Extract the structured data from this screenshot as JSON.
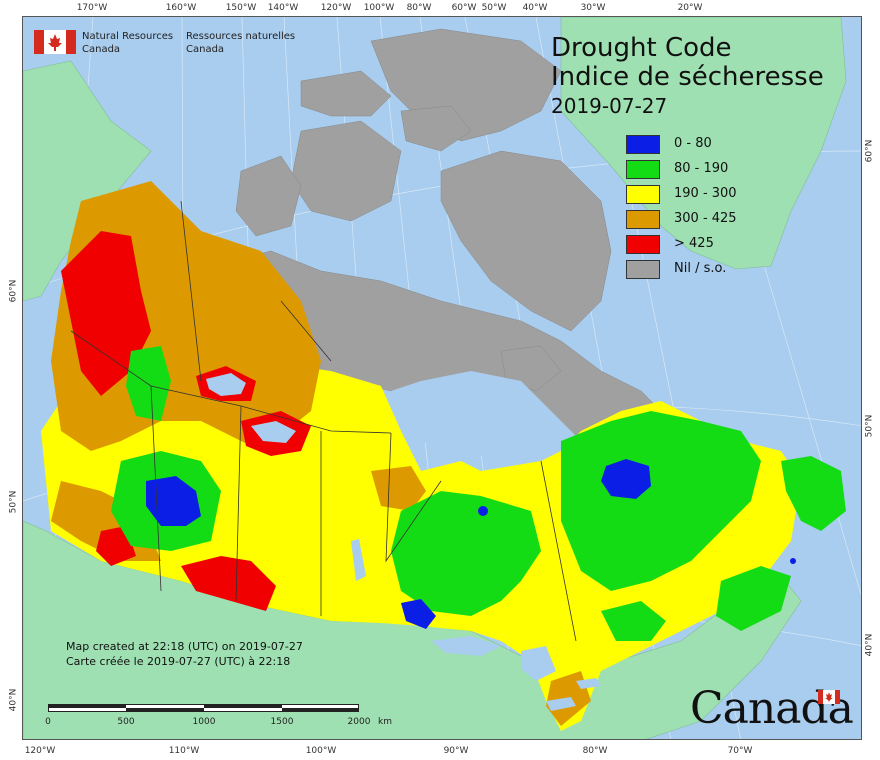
{
  "title": {
    "line1": "Drought Code",
    "line2": "Indice de sécheresse",
    "date": "2019-07-27"
  },
  "agency": {
    "en_line1": "Natural Resources",
    "en_line2": "Canada",
    "fr_line1": "Ressources naturelles",
    "fr_line2": "Canada"
  },
  "legend": [
    {
      "label": "0 - 80",
      "color": "#0a1ee6"
    },
    {
      "label": "80 - 190",
      "color": "#14dc14"
    },
    {
      "label": "190 - 300",
      "color": "#ffff00"
    },
    {
      "label": "300 - 425",
      "color": "#dc9a00"
    },
    {
      "label": "> 425",
      "color": "#f00000"
    },
    {
      "label": "Nil / s.o.",
      "color": "#a0a0a0"
    }
  ],
  "note": {
    "line1": "Map created at 22:18 (UTC) on 2019-07-27",
    "line2": "Carte créée le 2019-07-27 (UTC) à 22:18"
  },
  "scale": {
    "labels": [
      "0",
      "500",
      "1000",
      "1500",
      "2000"
    ],
    "unit": "km"
  },
  "top_ticks": [
    "170°W",
    "160°W",
    "150°W",
    "140°W",
    "120°W",
    "100°W",
    "80°W",
    "60°W",
    "50°W",
    "40°W",
    "30°W",
    "20°W"
  ],
  "bottom_ticks": [
    "120°W",
    "110°W",
    "100°W",
    "90°W",
    "80°W",
    "70°W"
  ],
  "left_ticks": [
    "60°N",
    "50°N",
    "40°N"
  ],
  "right_ticks": [
    "60°N",
    "50°N",
    "40°N"
  ],
  "wordmark": "Canada",
  "colors": {
    "ocean": "#a9cdee",
    "other_land": "#9fe0b2",
    "flag_red": "#d52b1e"
  }
}
